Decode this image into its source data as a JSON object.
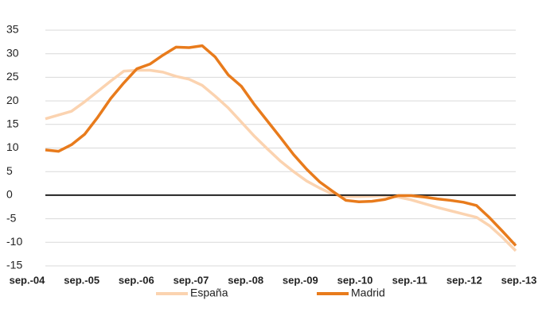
{
  "chart_data": {
    "type": "line",
    "categories": [
      "sep.-04",
      null,
      null,
      null,
      "sep.-05",
      null,
      null,
      null,
      "sep.-06",
      null,
      null,
      null,
      "sep.-07",
      null,
      null,
      null,
      "sep.-08",
      null,
      null,
      null,
      "sep.-09",
      null,
      null,
      null,
      "sep.-10",
      null,
      null,
      null,
      "sep.-11",
      null,
      null,
      null,
      "sep.-12",
      null,
      null,
      null,
      "sep.-13"
    ],
    "series": [
      {
        "name": "España",
        "color": "#fbd3b0",
        "values": [
          16.2,
          17,
          17.8,
          19.8,
          22,
          24.2,
          26.3,
          26.5,
          26.5,
          26.1,
          25.2,
          24.6,
          23.3,
          21,
          18.5,
          15.5,
          12.5,
          9.8,
          7.2,
          5,
          3,
          1.5,
          0.2,
          -0.3,
          -0.3,
          -0.2,
          -0.1,
          -0.4,
          -1,
          -1.8,
          -2.6,
          -3.3,
          -4,
          -4.7,
          -6.5,
          -9,
          -11.8
        ]
      },
      {
        "name": "Madrid",
        "color": "#e87b1c",
        "values": [
          9.6,
          9.3,
          10.7,
          12.9,
          16.5,
          20.5,
          23.8,
          26.8,
          27.8,
          29.7,
          31.4,
          31.3,
          31.7,
          29.3,
          25.5,
          23.1,
          19.2,
          15.7,
          12.2,
          8.6,
          5.5,
          2.8,
          0.8,
          -1.1,
          -1.4,
          -1.3,
          -0.9,
          -0.1,
          -0.1,
          -0.4,
          -0.8,
          -1.1,
          -1.5,
          -2.2,
          -4.8,
          -7.7,
          -10.7
        ]
      }
    ],
    "ylim": [
      -15,
      35
    ],
    "yticks": [
      -15,
      -10,
      -5,
      0,
      5,
      10,
      15,
      20,
      25,
      30,
      35
    ],
    "grid": true,
    "legend": "bottom"
  }
}
